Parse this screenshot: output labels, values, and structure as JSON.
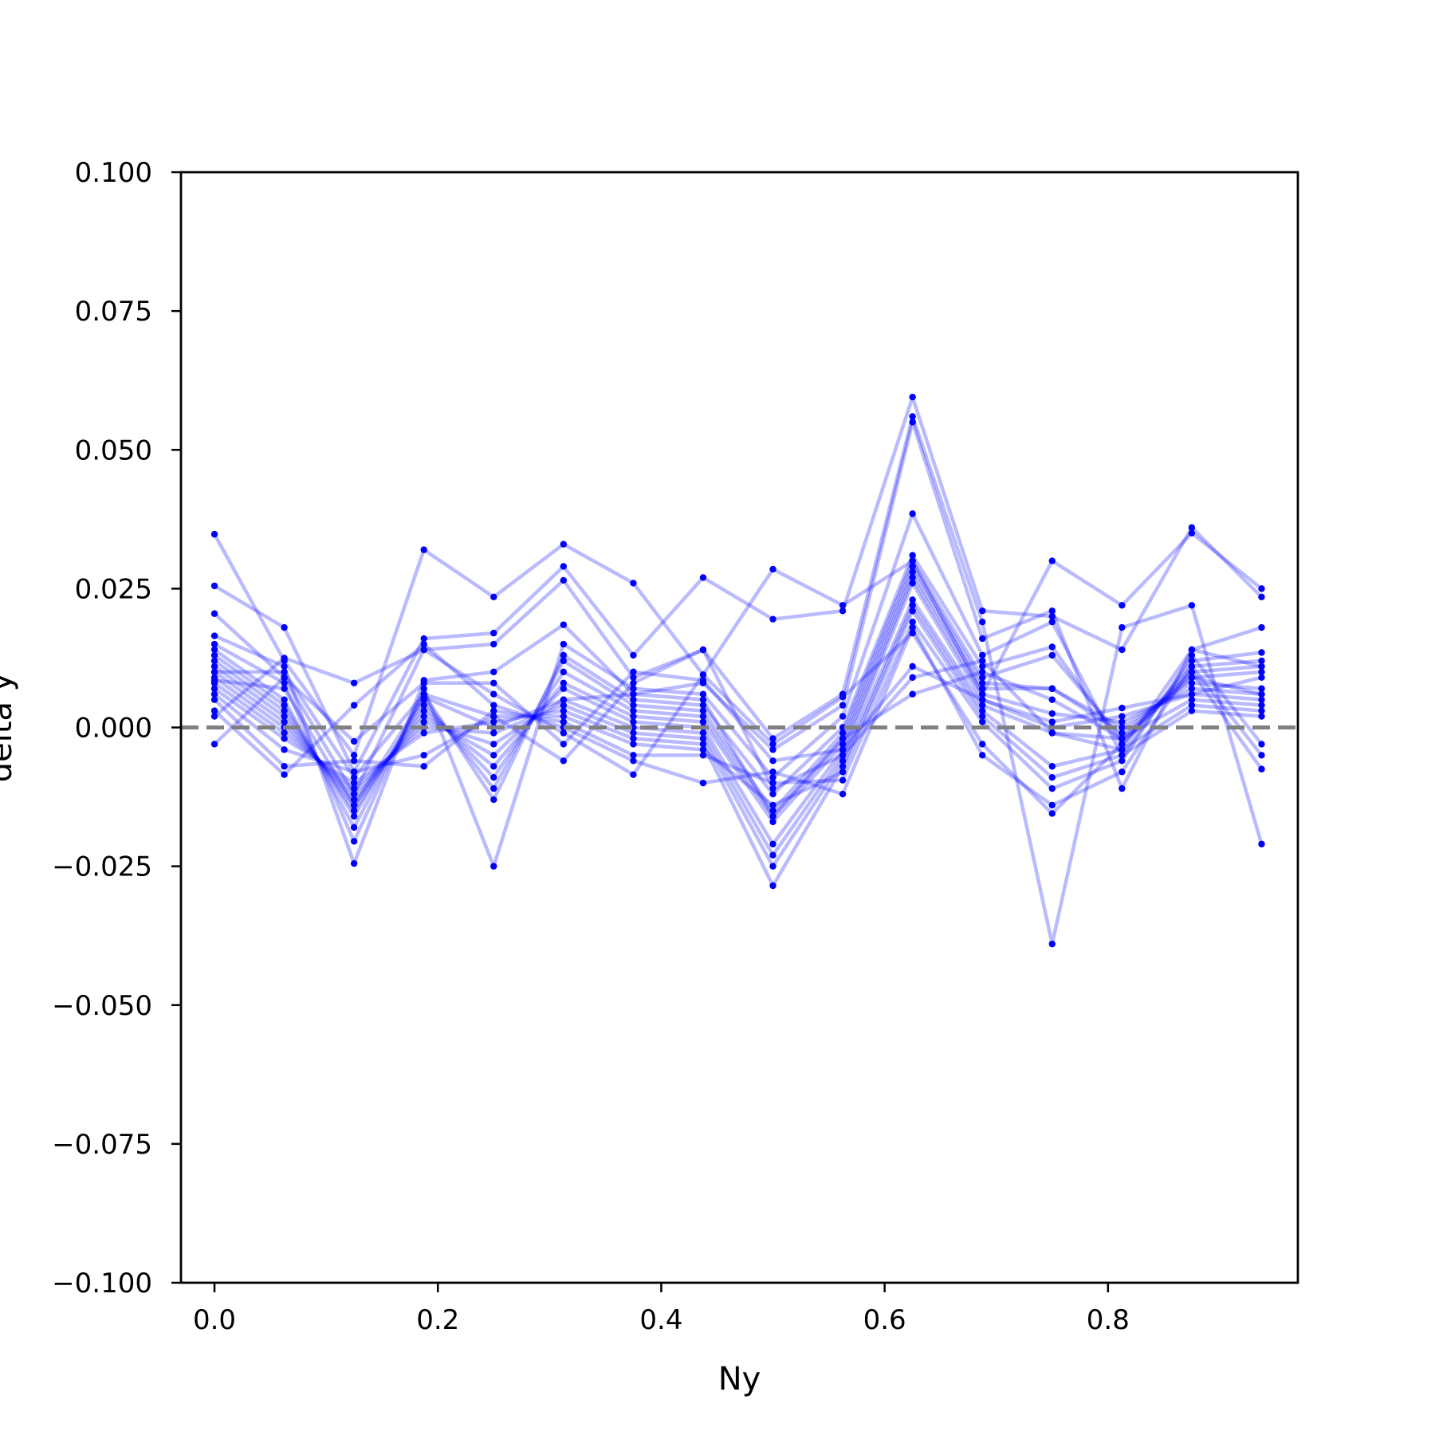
{
  "chart_data": {
    "type": "line",
    "title": "",
    "xlabel": "Ny",
    "ylabel": "delta y",
    "xlim": [
      -0.03,
      0.97
    ],
    "ylim": [
      -0.1,
      0.1
    ],
    "x_ticks": [
      0.0,
      0.2,
      0.4,
      0.6,
      0.8
    ],
    "x_tick_labels": [
      "0.0",
      "0.2",
      "0.4",
      "0.6",
      "0.8"
    ],
    "y_ticks": [
      0.1,
      0.075,
      0.05,
      0.025,
      0.0,
      -0.025,
      -0.05,
      -0.075,
      -0.1
    ],
    "y_tick_labels": [
      "0.100",
      "0.075",
      "0.050",
      "0.025",
      "0.000",
      "−0.025",
      "−0.050",
      "−0.075",
      "−0.100"
    ],
    "grid": false,
    "reference_line": {
      "y": 0.0,
      "style": "dashed",
      "color": "#808080"
    },
    "series_color": "#0000ff",
    "x": [
      0.0,
      0.0625,
      0.125,
      0.1875,
      0.25,
      0.3125,
      0.375,
      0.4375,
      0.5,
      0.5625,
      0.625,
      0.6875,
      0.75,
      0.8125,
      0.875,
      0.9375
    ],
    "series": [
      {
        "values": [
          0.0348,
          0.012,
          -0.005,
          0.032,
          0.0235,
          0.033,
          0.026,
          0.0095,
          0.0285,
          0.022,
          0.03,
          0.006,
          0.03,
          0.022,
          0.035,
          0.025
        ]
      },
      {
        "values": [
          0.0255,
          0.018,
          -0.008,
          0.016,
          0.017,
          0.029,
          0.013,
          0.027,
          0.0195,
          0.021,
          0.0595,
          0.021,
          0.02,
          0.014,
          0.036,
          0.0235
        ]
      },
      {
        "values": [
          0.0205,
          0.009,
          -0.012,
          0.014,
          0.015,
          0.0265,
          0.009,
          0.014,
          -0.002,
          0.006,
          0.056,
          0.019,
          -0.039,
          0.018,
          0.022,
          -0.021
        ]
      },
      {
        "values": [
          0.0165,
          0.011,
          -0.0245,
          0.0085,
          0.01,
          0.0185,
          0.006,
          0.008,
          -0.004,
          0.004,
          0.055,
          0.016,
          0.021,
          -0.011,
          0.014,
          0.018
        ]
      },
      {
        "values": [
          0.015,
          0.008,
          -0.0205,
          0.007,
          -0.025,
          0.015,
          0.007,
          0.006,
          -0.009,
          0.002,
          0.0385,
          0.013,
          0.019,
          -0.005,
          0.012,
          0.0135
        ]
      },
      {
        "values": [
          0.014,
          0.005,
          -0.018,
          0.006,
          -0.013,
          0.013,
          0.005,
          0.004,
          -0.012,
          0.0,
          0.031,
          0.011,
          0.0145,
          -0.003,
          0.011,
          0.012
        ]
      },
      {
        "values": [
          0.013,
          0.004,
          -0.016,
          0.005,
          -0.011,
          0.012,
          0.004,
          0.003,
          -0.015,
          -0.001,
          0.03,
          0.009,
          0.013,
          -0.002,
          0.01,
          0.011
        ]
      },
      {
        "values": [
          0.012,
          0.003,
          -0.015,
          0.004,
          -0.009,
          0.01,
          0.003,
          0.002,
          -0.016,
          -0.002,
          0.029,
          0.008,
          0.007,
          -0.001,
          0.009,
          0.01
        ]
      },
      {
        "values": [
          0.011,
          0.002,
          -0.014,
          0.003,
          -0.007,
          0.008,
          0.002,
          0.001,
          -0.017,
          -0.003,
          0.028,
          0.007,
          0.007,
          0.0,
          0.008,
          0.007
        ]
      },
      {
        "values": [
          0.01,
          0.001,
          -0.013,
          0.002,
          -0.005,
          0.007,
          0.001,
          0.0,
          -0.021,
          -0.004,
          0.027,
          0.006,
          0.0025,
          0.001,
          0.007,
          0.006
        ]
      },
      {
        "values": [
          0.009,
          0.0,
          -0.012,
          0.001,
          -0.003,
          0.005,
          0.0,
          -0.001,
          -0.023,
          -0.005,
          0.026,
          0.005,
          0.0,
          0.002,
          0.006,
          0.005
        ]
      },
      {
        "values": [
          0.008,
          -0.001,
          -0.011,
          0.0,
          -0.001,
          0.004,
          -0.001,
          -0.002,
          -0.025,
          -0.006,
          0.023,
          0.004,
          -0.001,
          -0.002,
          0.005,
          0.004
        ]
      },
      {
        "values": [
          0.007,
          -0.002,
          -0.01,
          -0.001,
          0.001,
          0.003,
          -0.002,
          -0.003,
          -0.0285,
          -0.007,
          0.022,
          0.003,
          -0.007,
          -0.004,
          0.004,
          0.003
        ]
      },
      {
        "values": [
          0.006,
          -0.004,
          -0.008,
          -0.005,
          0.002,
          0.002,
          -0.003,
          -0.004,
          -0.014,
          -0.008,
          0.021,
          0.002,
          -0.009,
          -0.005,
          0.003,
          0.002
        ]
      },
      {
        "values": [
          0.005,
          -0.007,
          -0.006,
          -0.007,
          0.003,
          0.001,
          -0.005,
          -0.005,
          -0.01,
          -0.0095,
          0.019,
          0.001,
          -0.011,
          -0.006,
          0.013,
          -0.003
        ]
      },
      {
        "values": [
          0.003,
          -0.0085,
          0.004,
          0.015,
          0.004,
          0.0,
          -0.006,
          -0.01,
          -0.008,
          -0.012,
          0.018,
          -0.005,
          -0.014,
          -0.008,
          0.011,
          -0.005
        ]
      },
      {
        "values": [
          0.002,
          0.0125,
          0.008,
          0.014,
          0.006,
          -0.001,
          -0.0085,
          0.0095,
          -0.003,
          0.0055,
          0.017,
          -0.003,
          -0.0155,
          -0.003,
          0.01,
          -0.0075
        ]
      },
      {
        "values": [
          -0.003,
          0.009,
          -0.0025,
          0.008,
          0.008,
          -0.003,
          0.01,
          0.0085,
          -0.006,
          -0.004,
          0.011,
          0.005,
          0.001,
          0.0035,
          0.006,
          0.009
        ]
      },
      {
        "values": [
          0.01,
          0.01,
          -0.009,
          0.006,
          0.002,
          -0.006,
          0.008,
          0.014,
          -0.011,
          -0.005,
          0.009,
          0.012,
          -0.001,
          -0.004,
          0.014,
          0.011
        ]
      },
      {
        "values": [
          0.0085,
          0.007,
          -0.014,
          0.0055,
          0.0,
          0.005,
          0.006,
          0.005,
          -0.016,
          -0.002,
          0.006,
          0.01,
          0.005,
          -0.002,
          0.009,
          0.006
        ]
      }
    ]
  }
}
